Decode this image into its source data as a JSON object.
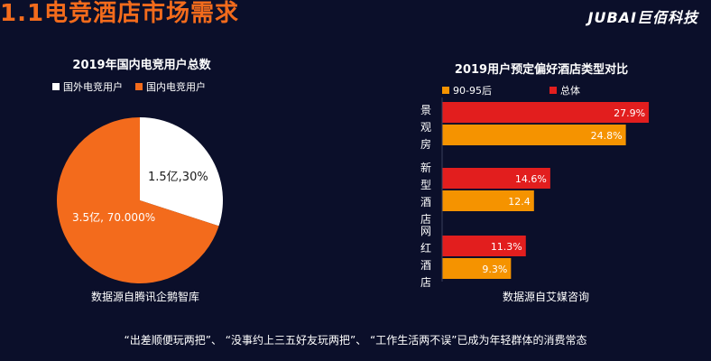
{
  "header": {
    "title": "1.1电竞酒店市场需求",
    "logo": "JUBAI巨佰科技"
  },
  "colors": {
    "background": "#0b0f2a",
    "orange": "#f36b1c",
    "white": "#ffffff",
    "red": "#e21e1e",
    "amber": "#f59300"
  },
  "footer": "“出差顺便玩两把”、 “没事约上三五好友玩两把”、 “工作生活两不误”已成为年轻群体的消费常态",
  "chart_data": [
    {
      "type": "pie",
      "title": "2019年国内电竞用户总数",
      "source": "数据源自腾讯企鹅智库",
      "legend": [
        "国外电竞用户",
        "国内电竞用户"
      ],
      "slices": [
        {
          "name": "国外电竞用户",
          "value": 30,
          "label": "1.5亿,30%",
          "color": "#ffffff"
        },
        {
          "name": "国内电竞用户",
          "value": 70,
          "label": "3.5亿, 70.000%",
          "color": "#f36b1c"
        }
      ]
    },
    {
      "type": "bar",
      "orientation": "horizontal",
      "title": "2019用户预定偏好酒店类型对比",
      "source": "数据源自艾媒咨询",
      "categories": [
        "景观房",
        "新型酒店",
        "网红酒店"
      ],
      "series": [
        {
          "name": "总体",
          "values": [
            27.9,
            14.6,
            11.3
          ],
          "labels": [
            "27.9%",
            "14.6%",
            "11.3%"
          ],
          "color": "#e21e1e"
        },
        {
          "name": "90-95后",
          "values": [
            24.8,
            12.4,
            9.3
          ],
          "labels": [
            "24.8%",
            "12.4",
            "9.3%"
          ],
          "color": "#f59300"
        }
      ],
      "legend_order": [
        "90-95后",
        "总体"
      ],
      "xlim": [
        0,
        28.5
      ]
    }
  ]
}
